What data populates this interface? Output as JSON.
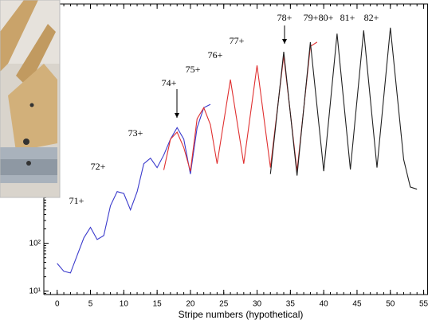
{
  "chart_data": {
    "type": "line",
    "x_label": "Stripe numbers (hypothetical)",
    "xlim": [
      -2,
      55.65
    ],
    "xticks": [
      0,
      5,
      10,
      15,
      20,
      25,
      30,
      35,
      40,
      45,
      50,
      55
    ],
    "ylim": [
      8.5,
      10000000
    ],
    "log_y": true,
    "yticks": [
      {
        "value": 10,
        "label": "10¹"
      },
      {
        "value": 100,
        "label": "10²"
      }
    ],
    "annotations": [
      "71+",
      "72+",
      "73+",
      "74+",
      "75+",
      "76+",
      "77+",
      "78+",
      "79+",
      "80+",
      "81+",
      "82+"
    ],
    "series": [
      {
        "color": "#3b3bcc",
        "x": [
          0,
          1,
          2,
          3,
          4,
          5,
          6,
          7,
          8,
          9,
          10,
          11,
          12,
          13,
          14,
          15,
          16,
          17,
          18,
          19,
          20,
          21,
          22,
          23
        ],
        "values": [
          38,
          26,
          24,
          56,
          130,
          215,
          120,
          145,
          610,
          1200,
          1100,
          500,
          1200,
          4600,
          6000,
          3800,
          7000,
          15000,
          26000,
          15000,
          2800,
          26000,
          68000,
          80000
        ]
      },
      {
        "color": "#e03030",
        "x": [
          16,
          17,
          18,
          19,
          20,
          21,
          22,
          23,
          24,
          26,
          28,
          30,
          32,
          34,
          36,
          38,
          39
        ],
        "values": [
          3400,
          15000,
          21000,
          10000,
          3200,
          40000,
          68000,
          30000,
          4600,
          263000,
          4600,
          520000,
          3800,
          830000,
          3200,
          1300000,
          1600000
        ]
      },
      {
        "color": "#222222",
        "x": [
          32,
          34,
          36,
          38,
          40,
          42,
          44,
          46,
          48,
          50,
          52,
          53,
          54
        ],
        "values": [
          2800,
          1000000,
          2600,
          1600000,
          3200,
          2400000,
          3500,
          2800000,
          3800,
          3200000,
          5600,
          1500,
          1350
        ]
      }
    ]
  }
}
